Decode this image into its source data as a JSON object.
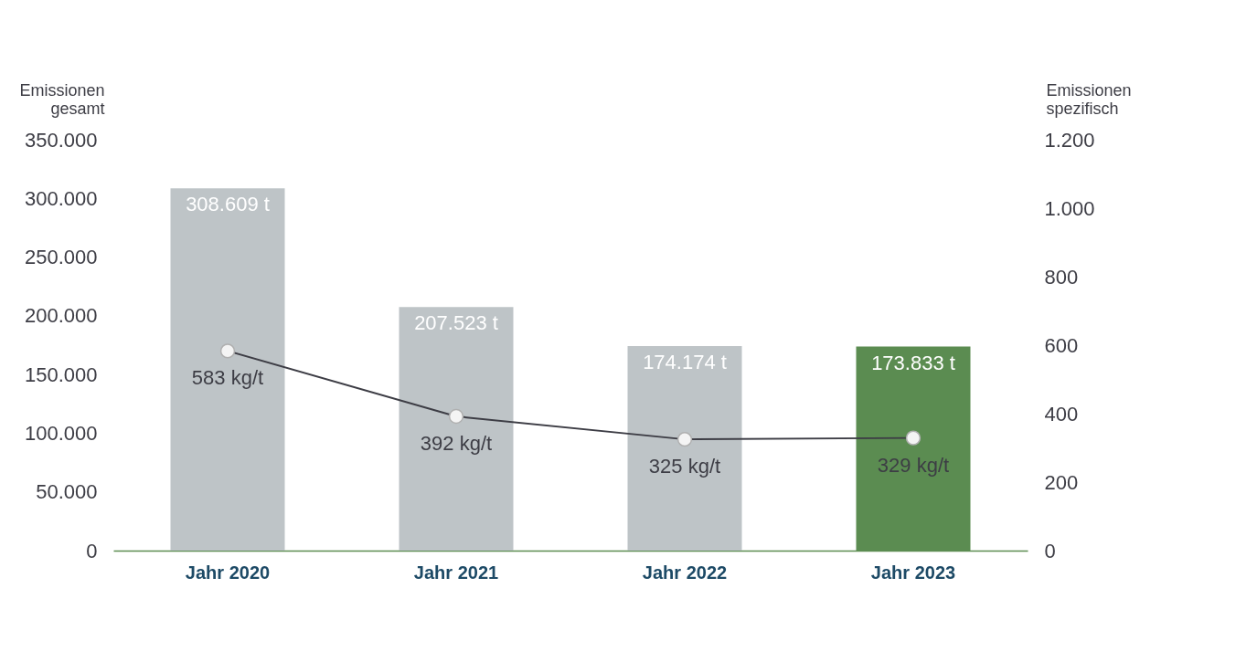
{
  "chart_data": {
    "type": "bar",
    "ylabel": "Emissionen gesamt",
    "y2label": "Emissionen spezifisch",
    "categories": [
      "Jahr 2020",
      "Jahr 2021",
      "Jahr 2022",
      "Jahr 2023"
    ],
    "series": [
      {
        "colors": [
          "#bec4c7",
          "#bec4c7",
          "#bec4c7",
          "#5b8c51"
        ],
        "values": [
          308609,
          207523,
          174174,
          173833
        ],
        "value_labels": [
          "308.609 t",
          "207.523 t",
          "174.174 t",
          "173.833 t"
        ]
      },
      {
        "type": "line",
        "axis": "y2",
        "color": "#3d3d45",
        "marker": "circle",
        "values": [
          583,
          392,
          325,
          329
        ],
        "value_labels": [
          "583 kg/t",
          "392 kg/t",
          "325 kg/t",
          "329 kg/t"
        ]
      }
    ],
    "ylim": [
      0,
      350000
    ],
    "yticks": [
      0,
      {
        "value": 50000,
        "label": "50.000"
      },
      {
        "value": 100000,
        "label": "100.000"
      },
      {
        "value": 150000,
        "label": "150.000"
      },
      {
        "value": 200000,
        "label": "200.000"
      },
      {
        "value": 250000,
        "label": "250.000"
      },
      {
        "value": 300000,
        "label": "300.000"
      },
      {
        "value": 350000,
        "label": "350.000"
      }
    ],
    "y2lim": [
      0,
      1200
    ],
    "y2ticks": [
      0,
      200,
      400,
      600,
      800,
      {
        "value": 1000,
        "label": "1.000"
      },
      {
        "value": 1200,
        "label": "1.200"
      }
    ],
    "grid": false
  }
}
